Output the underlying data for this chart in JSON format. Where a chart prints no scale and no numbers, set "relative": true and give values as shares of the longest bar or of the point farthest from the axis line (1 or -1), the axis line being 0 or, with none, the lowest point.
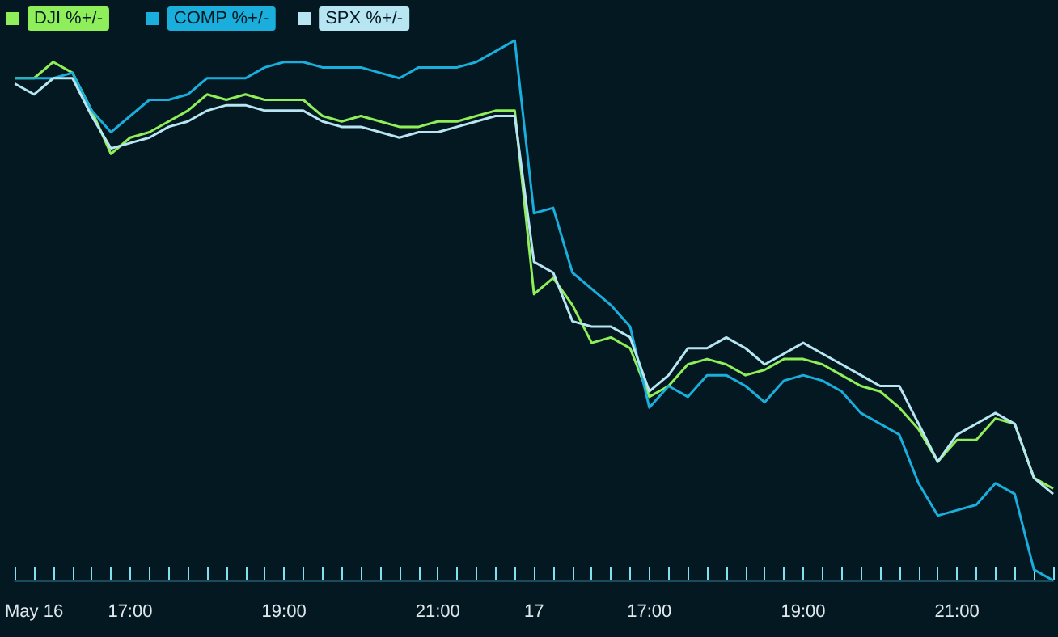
{
  "chart_data": {
    "type": "line",
    "relative": true,
    "legend": "top left",
    "marker": "none",
    "line_style": "solid",
    "categories": [
      null,
      "May 16",
      null,
      null,
      null,
      null,
      "17:00",
      null,
      null,
      null,
      null,
      null,
      null,
      null,
      "19:00",
      null,
      null,
      null,
      null,
      null,
      null,
      null,
      "21:00",
      null,
      null,
      null,
      null,
      "17",
      null,
      null,
      null,
      null,
      null,
      "17:00",
      null,
      null,
      null,
      null,
      null,
      null,
      null,
      "19:00",
      null,
      null,
      null,
      null,
      null,
      null,
      null,
      "21:00",
      null,
      null,
      null,
      null,
      null
    ],
    "series": [
      {
        "name": "DJI %+/-",
        "color": "#8fef5a",
        "values": [
          0.93,
          0.93,
          0.96,
          0.94,
          0.87,
          0.79,
          0.82,
          0.83,
          0.85,
          0.87,
          0.9,
          0.89,
          0.9,
          0.89,
          0.89,
          0.89,
          0.86,
          0.85,
          0.86,
          0.85,
          0.84,
          0.84,
          0.85,
          0.85,
          0.86,
          0.87,
          0.87,
          0.53,
          0.56,
          0.51,
          0.44,
          0.45,
          0.43,
          0.34,
          0.36,
          0.4,
          0.41,
          0.4,
          0.38,
          0.39,
          0.41,
          0.41,
          0.4,
          0.38,
          0.36,
          0.35,
          0.32,
          0.28,
          0.22,
          0.26,
          0.26,
          0.3,
          0.29,
          0.19,
          0.17
        ]
      },
      {
        "name": "COMP %+/-",
        "color": "#1aaedd",
        "values": [
          0.93,
          0.93,
          0.93,
          0.94,
          0.87,
          0.83,
          0.86,
          0.89,
          0.89,
          0.9,
          0.93,
          0.93,
          0.93,
          0.95,
          0.96,
          0.96,
          0.95,
          0.95,
          0.95,
          0.94,
          0.93,
          0.95,
          0.95,
          0.95,
          0.96,
          0.98,
          1,
          0.68,
          0.69,
          0.57,
          0.54,
          0.51,
          0.47,
          0.32,
          0.36,
          0.34,
          0.38,
          0.38,
          0.36,
          0.33,
          0.37,
          0.38,
          0.37,
          0.35,
          0.31,
          0.29,
          0.27,
          0.18,
          0.12,
          0.13,
          0.14,
          0.18,
          0.16,
          0.02,
          0
        ]
      },
      {
        "name": "SPX %+/-",
        "color": "#b7e6f2",
        "values": [
          0.92,
          0.9,
          0.93,
          0.93,
          0.86,
          0.8,
          0.81,
          0.82,
          0.84,
          0.85,
          0.87,
          0.88,
          0.88,
          0.87,
          0.87,
          0.87,
          0.85,
          0.84,
          0.84,
          0.83,
          0.82,
          0.83,
          0.83,
          0.84,
          0.85,
          0.86,
          0.86,
          0.59,
          0.57,
          0.48,
          0.47,
          0.47,
          0.45,
          0.35,
          0.38,
          0.43,
          0.43,
          0.45,
          0.43,
          0.4,
          0.42,
          0.44,
          0.42,
          0.4,
          0.38,
          0.36,
          0.36,
          0.29,
          0.22,
          0.27,
          0.29,
          0.31,
          0.29,
          0.19,
          0.16
        ]
      }
    ]
  }
}
